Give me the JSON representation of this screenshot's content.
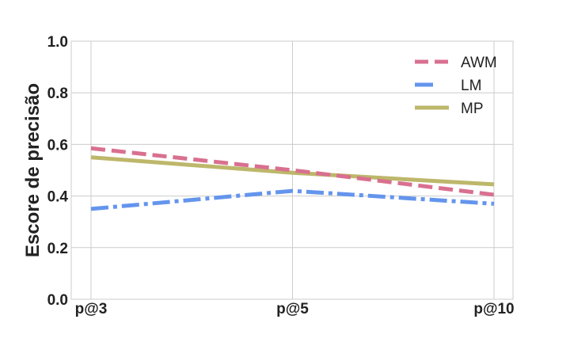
{
  "chart_data": {
    "type": "line",
    "categories": [
      "p@3",
      "p@5",
      "p@10"
    ],
    "ylabel": "Escore de precisão",
    "xlabel": "",
    "ylim": [
      0.0,
      1.0
    ],
    "yticks": [
      "0.0",
      "0.2",
      "0.4",
      "0.6",
      "0.8",
      "1.0"
    ],
    "grid": true,
    "legend_position": "top-right",
    "series": [
      {
        "name": "AWM",
        "values": [
          0.585,
          0.5,
          0.405
        ],
        "color": "#d9708f",
        "style": "dashed"
      },
      {
        "name": "LM",
        "values": [
          0.35,
          0.42,
          0.37
        ],
        "color": "#6495ed",
        "style": "dashdot"
      },
      {
        "name": "MP",
        "values": [
          0.55,
          0.49,
          0.445
        ],
        "color": "#bdb76b",
        "style": "solid"
      }
    ]
  }
}
